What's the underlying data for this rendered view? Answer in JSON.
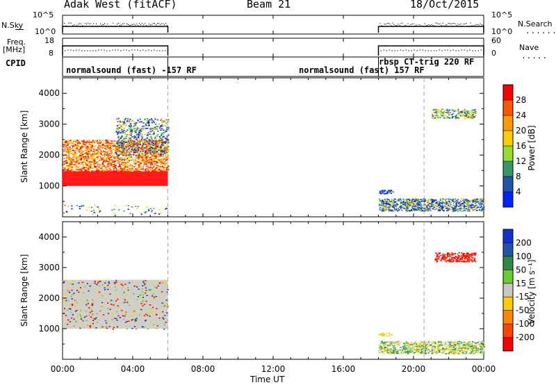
{
  "header": {
    "station": "Adak West (fitACF)",
    "beam": "Beam 21",
    "date": "18/Oct/2015"
  },
  "nsky": {
    "label": "N.Sky",
    "right_label": "N.Search",
    "yticks": [
      "10^5",
      "10^0"
    ],
    "right_yticks": [
      "10^5",
      "10^0"
    ]
  },
  "freq": {
    "label_line1": "Freq.",
    "label_line2": "[MHz]",
    "yticks": [
      "18",
      "8"
    ],
    "right_label": "Nave",
    "right_yticks": [
      "60",
      "0"
    ]
  },
  "cpid": {
    "label": "CPID",
    "segments": [
      {
        "text": "normalsound (fast) -157 RF",
        "start_hr": 0,
        "end_hr": 6
      },
      {
        "text": "normalsound (fast) 157 RF",
        "start_hr": 6,
        "end_hr": 18
      },
      {
        "text": "rbsp CT-trig 220 RF",
        "start_hr": 18,
        "end_hr": 24
      }
    ]
  },
  "power": {
    "ylabel": "Slant Range [km]",
    "cbar_label": "Power [dB]",
    "cbar_ticks": [
      "28",
      "24",
      "20",
      "16",
      "12",
      "8",
      "4"
    ],
    "cbar_colors": [
      "#ff0000",
      "#ff5500",
      "#ff9900",
      "#ffcc00",
      "#99dd33",
      "#339966",
      "#2255aa",
      "#0022ff"
    ]
  },
  "velocity": {
    "ylabel": "Slant Range [km]",
    "cbar_label": "Velocity [m s⁻¹]",
    "cbar_ticks": [
      "200",
      "100",
      "50",
      "15",
      "-15",
      "-50",
      "-100",
      "-200"
    ],
    "cbar_colors": [
      "#1133cc",
      "#2255aa",
      "#338844",
      "#66cc33",
      "#c8c8c0",
      "#ffcc00",
      "#ff8800",
      "#ff4400",
      "#ff0000"
    ]
  },
  "chart_data": {
    "type": "heatmap",
    "xlabel": "Time UT",
    "xticks": [
      "00:00",
      "04:00",
      "08:00",
      "12:00",
      "16:00",
      "20:00",
      "00:00"
    ],
    "xlim_hours": [
      0,
      24
    ],
    "ylim_km": [
      0,
      4500
    ],
    "yticks_km": [
      "1000",
      "2000",
      "3000",
      "4000"
    ],
    "gaps_hours": [
      [
        6,
        18
      ]
    ],
    "transmission_marks_hours": [
      6,
      20.6
    ],
    "series": [
      {
        "name": "Power [dB]",
        "regions": [
          {
            "t0": 0,
            "t1": 6,
            "r0": 1000,
            "r1": 1500,
            "value_db": 26
          },
          {
            "t0": 0,
            "t1": 6,
            "r0": 1500,
            "r1": 2500,
            "value_db": 22
          },
          {
            "t0": 3,
            "t1": 6,
            "r0": 2000,
            "r1": 3200,
            "value_db": 12
          },
          {
            "t0": 18,
            "t1": 24,
            "r0": 200,
            "r1": 600,
            "value_db": 8
          },
          {
            "t0": 21,
            "t1": 23.5,
            "r0": 3200,
            "r1": 3500,
            "value_db": 14
          }
        ]
      },
      {
        "name": "Velocity [m s⁻¹]",
        "regions": [
          {
            "t0": 0,
            "t1": 6,
            "r0": 1000,
            "r1": 2600,
            "value_ms": 0
          },
          {
            "t0": 18,
            "t1": 24,
            "r0": 200,
            "r1": 600,
            "value_ms": 30
          },
          {
            "t0": 18,
            "t1": 18.8,
            "r0": 780,
            "r1": 880,
            "value_ms": -40
          },
          {
            "t0": 21.2,
            "t1": 23.5,
            "r0": 3200,
            "r1": 3500,
            "value_ms": -250
          }
        ]
      }
    ]
  }
}
